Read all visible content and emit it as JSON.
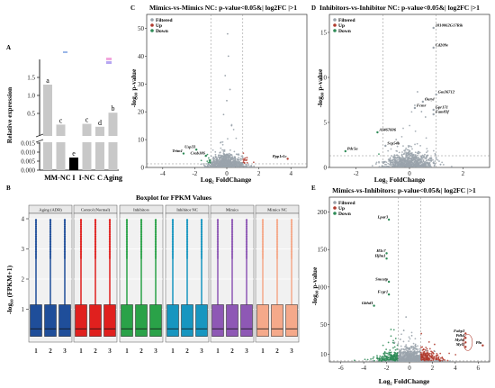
{
  "panels": {
    "A": "A",
    "B": "B",
    "C": "C",
    "D": "D",
    "E": "E"
  },
  "colors": {
    "filtered": "#9aa3ab",
    "up": "#b03b2e",
    "down": "#2e8b57",
    "box_colors": [
      "#1f4e9a",
      "#e0201e",
      "#2aa248",
      "#1796c0",
      "#8e58b5",
      "#f5a98a"
    ]
  },
  "chart_data": [
    {
      "id": "A",
      "type": "bar",
      "categories": [
        "M",
        "M-NC",
        "I",
        "I-NC",
        "C",
        "Aging"
      ],
      "values": [
        1.3,
        0.19,
        0.007,
        0.21,
        0.13,
        0.52
      ],
      "bar_colors": [
        "#c8c8c8",
        "#c8c8c8",
        "#000000",
        "#c8c8c8",
        "#c8c8c8",
        "#c8c8c8"
      ],
      "letters": [
        "a",
        "c",
        "e",
        "c",
        "d",
        "b"
      ],
      "ylabel": "Relative expression",
      "axis_break": true,
      "upper_ticks": [
        "1.5",
        "1.0",
        "0.5"
      ],
      "lower_ticks": [
        "0.015",
        "0.010",
        "0.005",
        "0.000"
      ]
    },
    {
      "id": "B",
      "type": "box",
      "title": "Boxplot for FPKM Values",
      "ylabel": "-log₁₀ (FPKM+1)",
      "y_ticks": [
        "1",
        "2",
        "3",
        "4"
      ],
      "ylim": [
        0,
        4.5
      ],
      "group_headers": [
        "Aging (ADR)",
        "Control (Normal)",
        "Inhibitors",
        "Inhibitor NC",
        "Mimics",
        "Mimics NC"
      ],
      "x_ticks": [
        "1",
        "2",
        "3"
      ],
      "boxes": {
        "q1": 0.1,
        "median": 0.35,
        "q3": 1.15,
        "whisker_high": 2.7,
        "outlier_max": 4.0
      }
    },
    {
      "id": "C",
      "type": "scatter",
      "title": "Mimics-vs-Mimics NC: p-value<0.05&| log2FC |>1",
      "xlabel": "Log₂ FoldChange",
      "ylabel": "-log₁₀ p-value",
      "xlim": [
        -5,
        5
      ],
      "ylim": [
        0,
        55
      ],
      "x_ticks": [
        -4,
        -2,
        0,
        2,
        4
      ],
      "y_ticks": [
        0,
        10,
        20,
        30,
        40,
        50
      ],
      "thresholds": {
        "x": [
          -1,
          1
        ],
        "y": 1.3
      },
      "legend": [
        "Filtered",
        "Up",
        "Down"
      ],
      "legend_position": "top-left",
      "labeled_points": [
        {
          "label": "Trim1",
          "x": -2.7,
          "y": 5.0
        },
        {
          "label": "Usp33",
          "x": -1.9,
          "y": 6.4
        },
        {
          "label": "Crab186",
          "x": -1.3,
          "y": 4.2
        },
        {
          "label": "Ppp1r1c",
          "x": 3.8,
          "y": 3.1
        }
      ]
    },
    {
      "id": "D",
      "type": "scatter",
      "title": "Inhibitors-vs-Inhibitor NC: p-value<0.05&| log2FC |>1",
      "xlabel": "Log₂ FoldChange",
      "ylabel": "-log₁₀ p-value",
      "xlim": [
        -3,
        3
      ],
      "ylim": [
        0,
        17
      ],
      "x_ticks": [
        -2,
        0,
        2
      ],
      "y_ticks": [
        0,
        5,
        10,
        15
      ],
      "thresholds": {
        "x": [
          -1,
          1
        ],
        "y": 1.3
      },
      "legend": [
        "Filtered",
        "Up",
        "Down"
      ],
      "legend_position": "top-left",
      "labeled_points": [
        {
          "label": "1810062G17Rik",
          "x": 0.9,
          "y": 15.5
        },
        {
          "label": "Cd209e",
          "x": 0.9,
          "y": 13.3
        },
        {
          "label": "Gm36712",
          "x": 1.0,
          "y": 8.1
        },
        {
          "label": "Oaryl",
          "x": 0.5,
          "y": 7.3
        },
        {
          "label": "Fcmr",
          "x": 0.2,
          "y": 6.6
        },
        {
          "label": "Gpr171",
          "x": 0.9,
          "y": 6.4
        },
        {
          "label": "Fam83f",
          "x": 0.9,
          "y": 5.9
        },
        {
          "label": "AI467606",
          "x": -1.2,
          "y": 3.9
        },
        {
          "label": "Pdc5a",
          "x": -2.4,
          "y": 1.8
        },
        {
          "label": "Scp54b",
          "x": -0.9,
          "y": 2.4
        }
      ]
    },
    {
      "id": "E",
      "type": "scatter",
      "title": "Mimics-vs-Inhibitors: p-value<0.05&| log2FC |>1",
      "xlabel": "Log₂ FoldChange",
      "ylabel": "-log₁₀ p-value",
      "xlim": [
        -7,
        7
      ],
      "ylim": [
        0,
        220
      ],
      "x_ticks": [
        -6,
        -4,
        -2,
        0,
        2,
        4,
        6
      ],
      "y_ticks": [
        10,
        50,
        100,
        150,
        200
      ],
      "thresholds": {
        "x": [
          -1,
          1
        ],
        "y": 1.3
      },
      "legend": [
        "Filtered",
        "Up",
        "Down"
      ],
      "legend_position": "top-left",
      "labeled_points": [
        {
          "label": "Lpar3",
          "x": -1.8,
          "y": 190
        },
        {
          "label": "H3c7",
          "x": -2.0,
          "y": 145
        },
        {
          "label": "Hjlm1",
          "x": -2.0,
          "y": 138
        },
        {
          "label": "Smcatp",
          "x": -1.8,
          "y": 107
        },
        {
          "label": "Fcgr1",
          "x": -1.8,
          "y": 90
        },
        {
          "label": "Gbhd1",
          "x": -3.1,
          "y": 75
        },
        {
          "label": "Fabp3",
          "x": 4.9,
          "y": 38
        },
        {
          "label": "Pdk4",
          "x": 4.9,
          "y": 32
        },
        {
          "label": "Myh6",
          "x": 4.9,
          "y": 26
        },
        {
          "label": "Myl3",
          "x": 4.9,
          "y": 20
        },
        {
          "label": "Pln",
          "x": 6.4,
          "y": 22
        }
      ]
    }
  ]
}
